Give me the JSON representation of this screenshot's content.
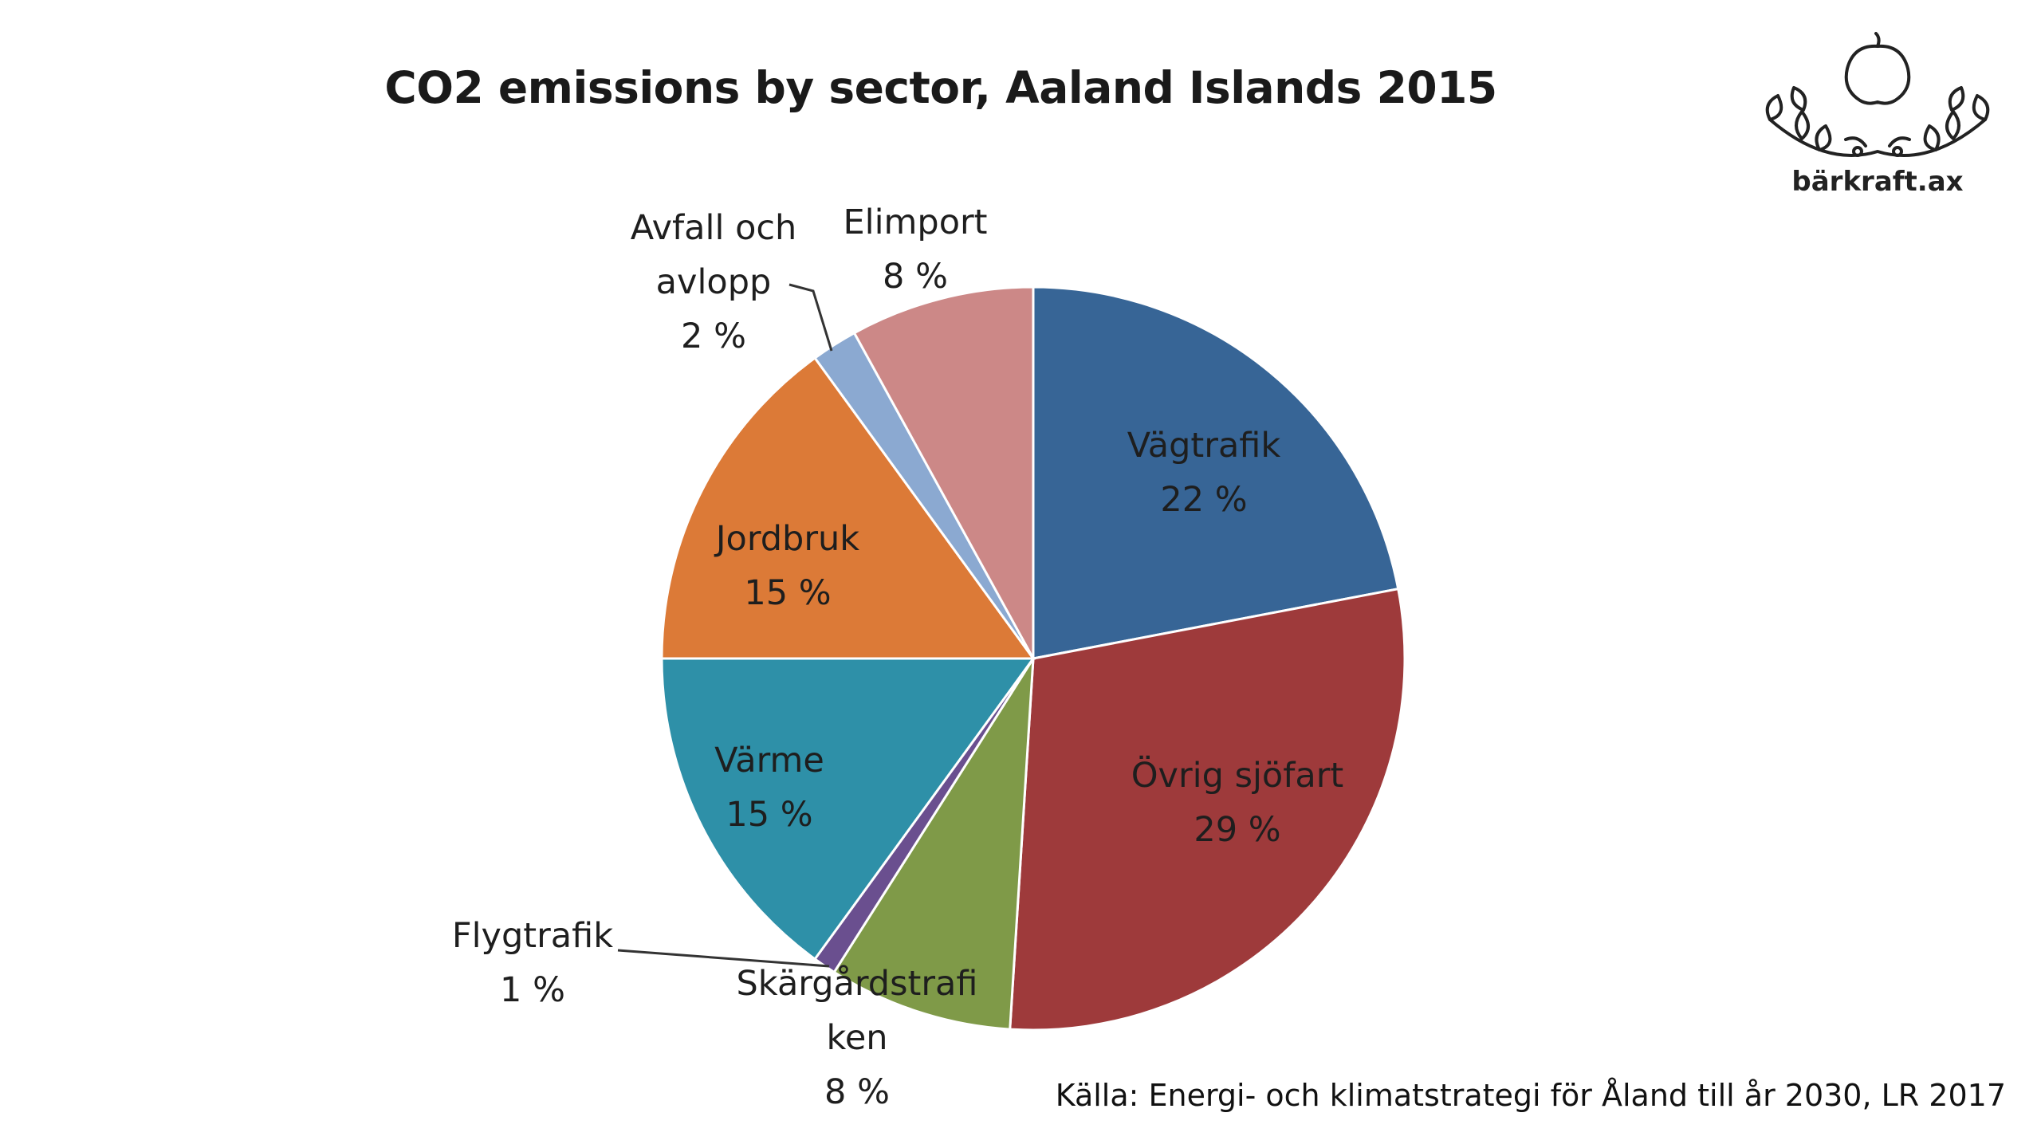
{
  "slide": {
    "title": "CO2 emissions by sector, Aaland Islands 2015",
    "source": "Källa: Energi- och klimatstrategi för Åland till år 2030, LR 2017"
  },
  "logo": {
    "icon": "apple-branch-icon",
    "text": "bärkraft.ax"
  },
  "chart_data": {
    "type": "pie",
    "title": "CO2 emissions by sector, Aaland Islands 2015",
    "unit": "%",
    "start": "12 o'clock, clockwise",
    "slices": [
      {
        "label": "Vägtrafik",
        "value": 22,
        "value_label": "22 %",
        "color": "#376596"
      },
      {
        "label": "Övrig sjöfart",
        "value": 29,
        "value_label": "29 %",
        "color": "#9e3a3b"
      },
      {
        "label": "Skärgårdstrafiken",
        "label_lines": [
          "Skärgårdstrafi",
          "ken"
        ],
        "value": 8,
        "value_label": "8 %",
        "color": "#7f9a48"
      },
      {
        "label": "Flygtrafik",
        "value": 1,
        "value_label": "1 %",
        "color": "#6a4f8f"
      },
      {
        "label": "Värme",
        "value": 15,
        "value_label": "15 %",
        "color": "#2e90a8"
      },
      {
        "label": "Jordbruk",
        "value": 15,
        "value_label": "15 %",
        "color": "#dc7a37"
      },
      {
        "label": "Avfall och avlopp",
        "label_lines": [
          "Avfall och",
          "avlopp"
        ],
        "value": 2,
        "value_label": "2 %",
        "color": "#8ba9d1"
      },
      {
        "label": "Elimport",
        "value": 8,
        "value_label": "8 %",
        "color": "#cc8887"
      }
    ],
    "legend": "none (data labels on slices)"
  }
}
